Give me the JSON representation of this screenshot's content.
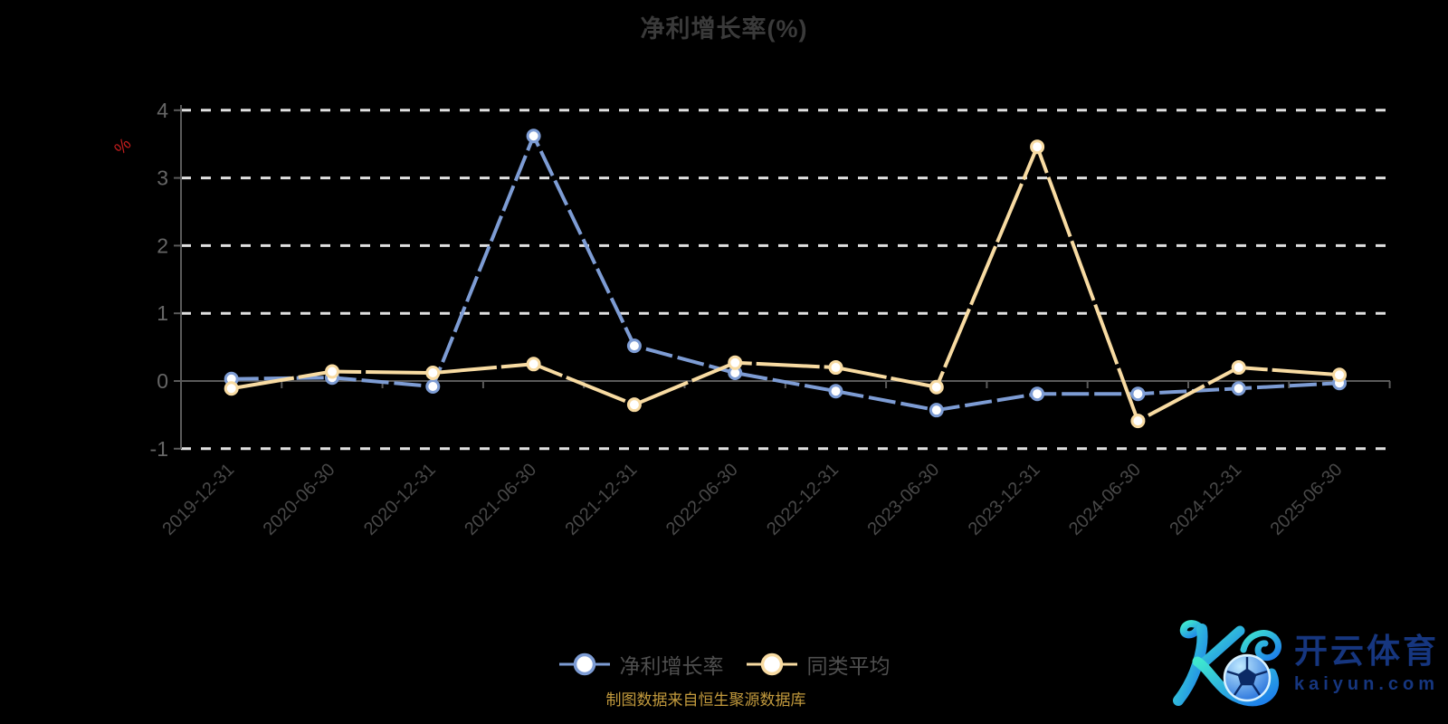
{
  "title": "净利增长率(%)",
  "y_axis_name": "%",
  "y_axis_name_color": "#c21d1d",
  "footer": "制图数据来自恒生聚源数据库",
  "legend": [
    {
      "label": "净利增长率",
      "color": "#7d9cd4"
    },
    {
      "label": "同类平均",
      "color": "#f8dba2"
    }
  ],
  "logo": {
    "brand_cn": "开云体育",
    "brand_domain": "kaiyun.com",
    "icon": "stylized-k-with-soccer-ball",
    "gradient": [
      "#3fe8cf",
      "#1c7bec"
    ],
    "text_color": "#16367f"
  },
  "colors": {
    "background": "#000000",
    "title_text": "#3a3a3a",
    "grid_line": "#e0e0e0",
    "axis_line": "#5a5a5a",
    "y_tick_label": "#666666",
    "x_tick_label": "#484848",
    "series_blue": "#7d9cd4",
    "series_yellow": "#f8dba2",
    "marker_fill": "#ffffff"
  },
  "chart_data": {
    "type": "line",
    "title": "净利增长率(%)",
    "ylabel": "%",
    "xlabel": "",
    "ylim": [
      -1,
      4
    ],
    "yticks": [
      -1,
      0,
      1,
      2,
      3,
      4
    ],
    "grid": true,
    "grid_style": "dashed",
    "legend_position": "bottom",
    "x_label_rotation": -45,
    "categories": [
      "2019-12-31",
      "2020-06-30",
      "2020-12-31",
      "2021-06-30",
      "2021-12-31",
      "2022-06-30",
      "2022-12-31",
      "2023-06-30",
      "2023-12-31",
      "2024-06-30",
      "2024-12-31",
      "2025-06-30"
    ],
    "series": [
      {
        "name": "净利增长率",
        "color": "#7d9cd4",
        "values": [
          0.03,
          0.05,
          -0.08,
          3.62,
          0.52,
          0.12,
          -0.15,
          -0.43,
          -0.19,
          -0.19,
          -0.11,
          -0.03
        ]
      },
      {
        "name": "同类平均",
        "color": "#f8dba2",
        "values": [
          -0.11,
          0.14,
          0.12,
          0.25,
          -0.35,
          0.27,
          0.2,
          -0.09,
          3.46,
          -0.59,
          0.2,
          0.09
        ]
      }
    ]
  }
}
